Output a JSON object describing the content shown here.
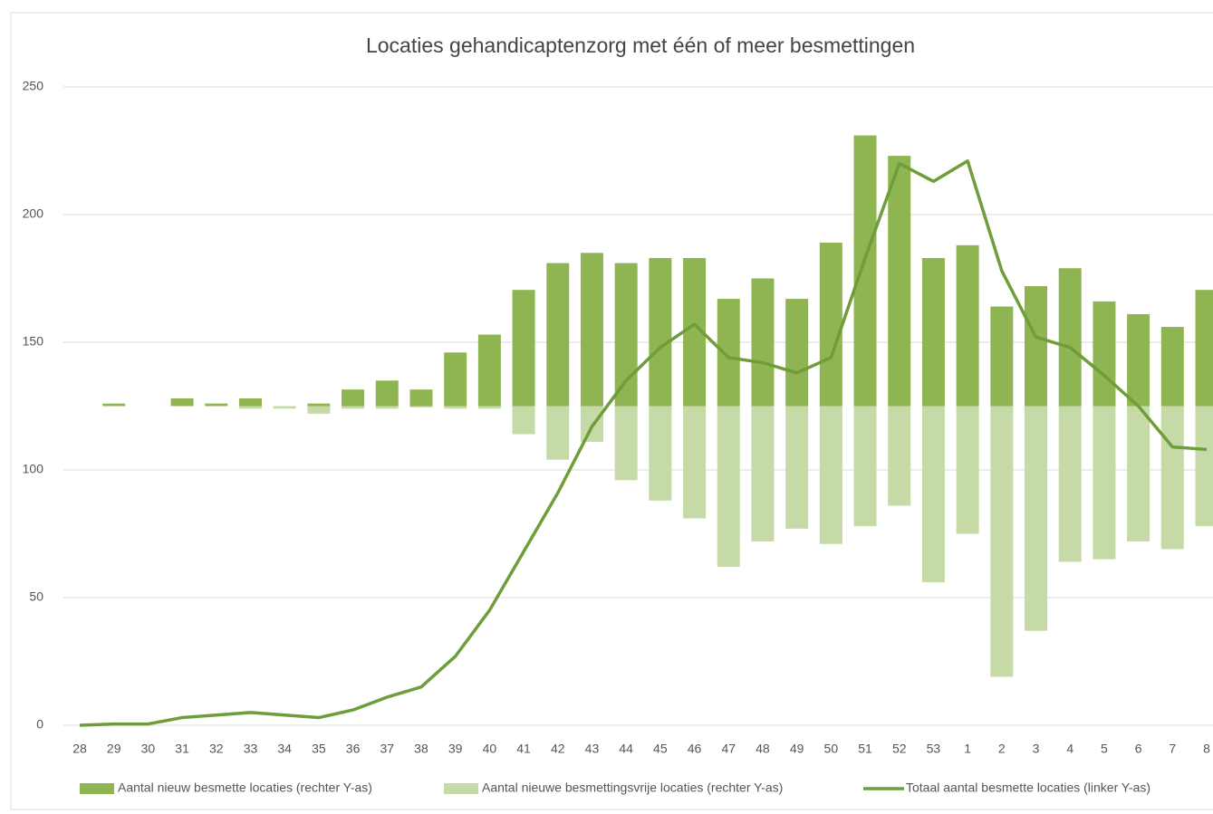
{
  "chart_data": {
    "type": "bar-line",
    "title": "Locaties gehandicaptenzorg met één of meer besmettingen",
    "categories": [
      "28",
      "29",
      "30",
      "31",
      "32",
      "33",
      "34",
      "35",
      "36",
      "37",
      "38",
      "39",
      "40",
      "41",
      "42",
      "43",
      "44",
      "45",
      "46",
      "47",
      "48",
      "49",
      "50",
      "51",
      "52",
      "53",
      "1",
      "2",
      "3",
      "4",
      "5",
      "6",
      "7",
      "8"
    ],
    "series": [
      {
        "name": "Aantal nieuw besmette locaties (rechter Y-as)",
        "type": "bar",
        "axis": "y2",
        "color": "#8fb552",
        "values": [
          0,
          1,
          0,
          3,
          1,
          3,
          0,
          1,
          6.5,
          10,
          6.5,
          21,
          28,
          45.5,
          56,
          60,
          56,
          58,
          58,
          42,
          50,
          42,
          64,
          106,
          98,
          58,
          63,
          39,
          47,
          54,
          41,
          36,
          31,
          45.5
        ]
      },
      {
        "name": "Aantal nieuwe besmettingsvrije locaties (rechter Y-as)",
        "type": "bar",
        "axis": "y2",
        "color": "#c6daa8",
        "values": [
          0,
          0,
          0,
          0,
          0,
          -1,
          -1,
          -3,
          -1,
          -1,
          -0.5,
          -1,
          -1,
          -11,
          -21,
          -14,
          -29,
          -37,
          -44,
          -63,
          -53,
          -48,
          -54,
          -47,
          -39,
          -69,
          -50,
          -106,
          -88,
          -61,
          -60,
          -53,
          -56,
          -47
        ]
      },
      {
        "name": "Totaal aantal besmette locaties (linker Y-as)",
        "type": "line",
        "color": "#6e9d3a",
        "values": [
          0,
          0.5,
          0.5,
          3,
          4,
          5,
          4,
          3,
          6,
          11,
          15,
          27,
          45,
          68,
          91,
          117,
          135,
          148,
          157,
          144,
          142,
          138,
          144,
          183,
          220,
          213,
          221,
          178,
          152,
          148,
          137,
          125,
          109,
          108
        ]
      }
    ],
    "ylim": [
      0,
      250
    ],
    "yticks": [
      0,
      50,
      100,
      150,
      200,
      250
    ],
    "y2lim": [
      -125,
      125
    ],
    "grid": true,
    "legend": "bottom"
  }
}
